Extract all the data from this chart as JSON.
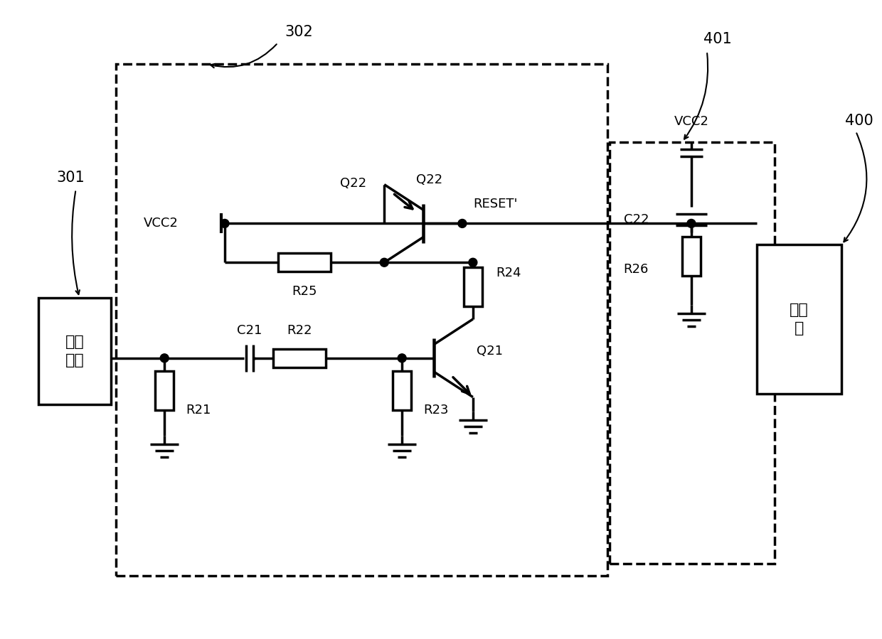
{
  "bg_color": "#ffffff",
  "line_color": "#000000",
  "lw": 2.5,
  "fig_width": 12.4,
  "fig_height": 8.99,
  "labels": {
    "power_box": "电源\n接口",
    "mcu_box": "单片\n机",
    "vcc2_main": "VCC2",
    "vcc2_sub": "VCC2",
    "reset_label": "RESET'",
    "q22_label": "Q22",
    "q21_label": "Q21",
    "r21_label": "R21",
    "r22_label": "R22",
    "r23_label": "R23",
    "r24_label": "R24",
    "r25_label": "R25",
    "r26_label": "R26",
    "c21_label": "C21",
    "c22_label": "C22",
    "label_301": "301",
    "label_302": "302",
    "label_400": "400",
    "label_401": "401"
  }
}
